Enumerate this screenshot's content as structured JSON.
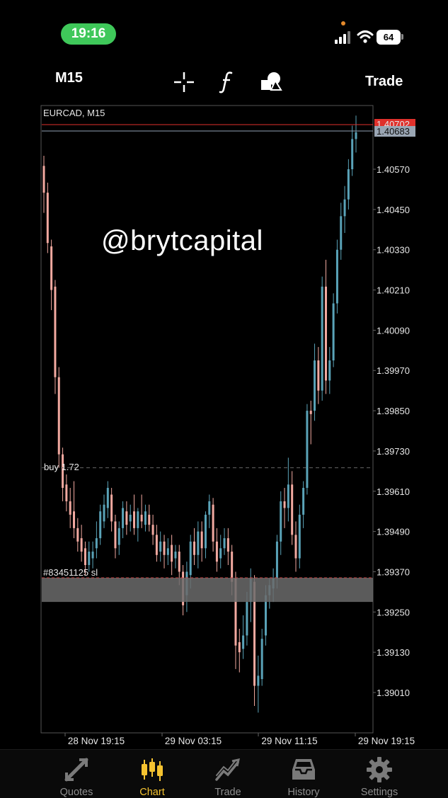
{
  "status_bar": {
    "time": "19:16",
    "battery": "64"
  },
  "toolbar": {
    "timeframe": "M15",
    "crosshair_icon": "crosshair-icon",
    "indicators_icon": "function-icon",
    "objects_icon": "shapes-icon",
    "trade_label": "Trade"
  },
  "chart": {
    "symbol_label": "EURCAD, M15",
    "bid_price": "1.40702",
    "ask_price": "1.40683",
    "order_buy_label": "buy 1.72",
    "order_sl_label": "#83451125 sl",
    "watermark": "@brytcapital",
    "colors": {
      "bull": "#5aa3b8",
      "bear": "#f2a9a0",
      "bid_line": "#e0312c",
      "ask_line": "#8fa0b5",
      "sl_band": "#6b6b6b"
    }
  },
  "chart_data": {
    "type": "candlestick",
    "symbol": "EURCAD",
    "timeframe": "M15",
    "price_ticks": [
      "1.40570",
      "1.40450",
      "1.40330",
      "1.40210",
      "1.40090",
      "1.39970",
      "1.39850",
      "1.39730",
      "1.39610",
      "1.39490",
      "1.39370",
      "1.39250",
      "1.39130",
      "1.39010"
    ],
    "time_ticks": [
      "28 Nov 19:15",
      "29 Nov 03:15",
      "29 Nov 11:15",
      "29 Nov 19:15"
    ],
    "levels": {
      "bid": 1.40702,
      "ask": 1.40683,
      "buy_entry": 1.3968,
      "stop_loss": 1.39352,
      "sl_zone": [
        1.3928,
        1.39352
      ]
    },
    "ylim": [
      1.3895,
      1.4078
    ]
  },
  "tabs": [
    {
      "label": "Quotes",
      "icon": "quotes-icon"
    },
    {
      "label": "Chart",
      "icon": "chart-candles-icon"
    },
    {
      "label": "Trade",
      "icon": "trade-icon"
    },
    {
      "label": "History",
      "icon": "history-inbox-icon"
    },
    {
      "label": "Settings",
      "icon": "settings-gear-icon"
    }
  ]
}
